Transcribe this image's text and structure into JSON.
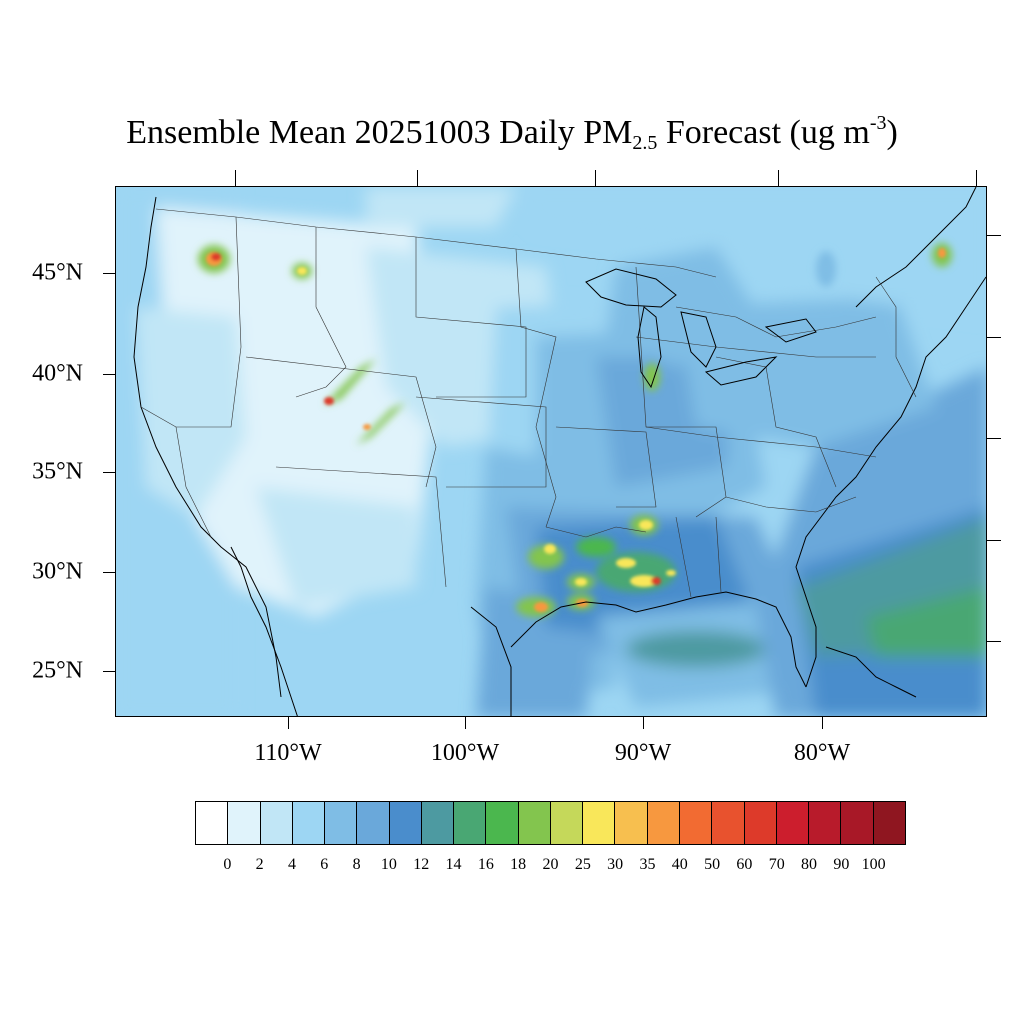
{
  "title": {
    "prefix": "Ensemble Mean 20251003 Daily PM",
    "sub": "2.5",
    "mid": " Forecast (ug m",
    "sup": "-3",
    "suffix": ")"
  },
  "map": {
    "lat_labels": [
      "45°N",
      "40°N",
      "35°N",
      "30°N",
      "25°N"
    ],
    "lon_labels": [
      "110°W",
      "100°W",
      "90°W",
      "80°W"
    ]
  },
  "legend": {
    "labels": [
      "0",
      "2",
      "4",
      "6",
      "8",
      "10",
      "12",
      "14",
      "16",
      "18",
      "20",
      "25",
      "30",
      "35",
      "40",
      "50",
      "60",
      "70",
      "80",
      "90",
      "100"
    ],
    "colors": [
      "#ffffff",
      "#e0f3fb",
      "#c1e6f6",
      "#9dd6f3",
      "#7fbde5",
      "#6aa8da",
      "#4a8dcc",
      "#4d9aa1",
      "#49a773",
      "#4bb74e",
      "#83c54e",
      "#c5d85a",
      "#f9e75a",
      "#f7bf4f",
      "#f7983f",
      "#f26b32",
      "#e8522e",
      "#dd3a2a",
      "#cc1e2d",
      "#b81b2b",
      "#a81827",
      "#8f1620"
    ]
  }
}
